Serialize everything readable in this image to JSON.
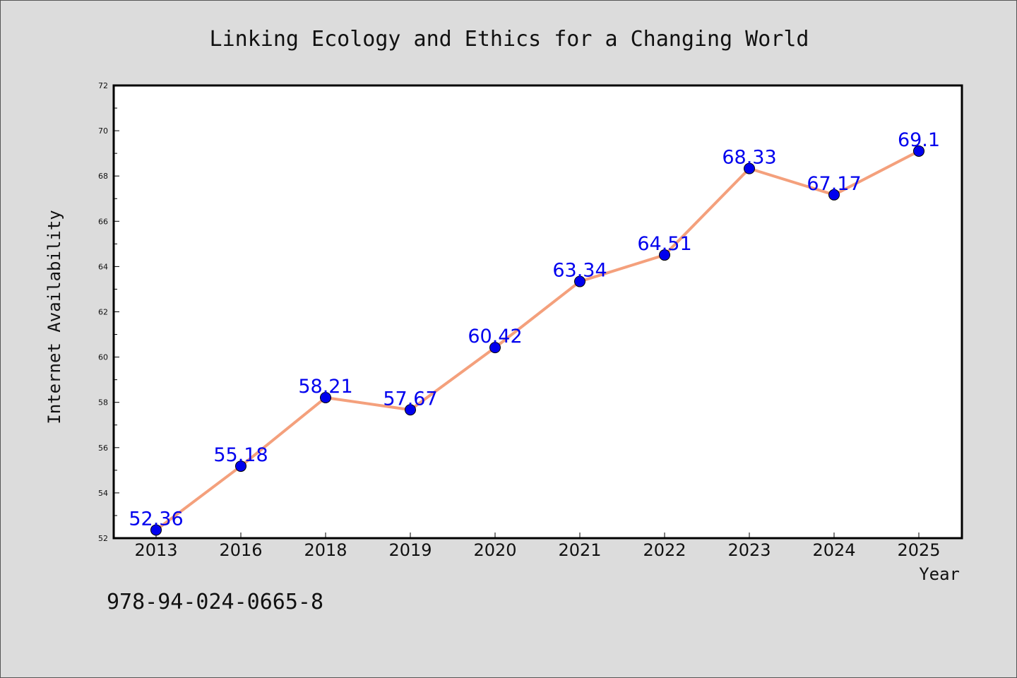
{
  "chart_data": {
    "type": "line",
    "title": "Linking Ecology and Ethics for a Changing World",
    "xlabel": "Year",
    "ylabel": "Internet Availability",
    "categories": [
      "2013",
      "2016",
      "2018",
      "2019",
      "2020",
      "2021",
      "2022",
      "2023",
      "2024",
      "2025"
    ],
    "series": [
      {
        "values": [
          52.36,
          55.18,
          58.21,
          57.67,
          60.42,
          63.34,
          64.51,
          68.33,
          67.17,
          69.1
        ],
        "labels": [
          "52.36",
          "55.18",
          "58.21",
          "57.67",
          "60.42",
          "63.34",
          "64.51",
          "68.33",
          "67.17",
          "69.1"
        ]
      }
    ],
    "ylim": [
      52,
      72
    ],
    "yticks": [
      "52",
      "54",
      "56",
      "58",
      "60",
      "62",
      "64",
      "66",
      "68",
      "70",
      "72"
    ],
    "grid": false,
    "legend": "none",
    "colors": {
      "line": "#f4a07c",
      "marker": "#0000ee",
      "label": "#0000ee"
    }
  },
  "footer": {
    "isbn": "978-94-024-0665-8"
  }
}
